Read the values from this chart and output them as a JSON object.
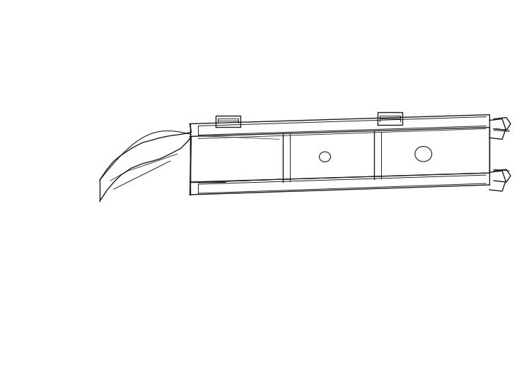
{
  "bg_color": "#ffffff",
  "line_color": "#1a1a1a",
  "fig_width": 7.34,
  "fig_height": 5.4,
  "dpi": 100
}
